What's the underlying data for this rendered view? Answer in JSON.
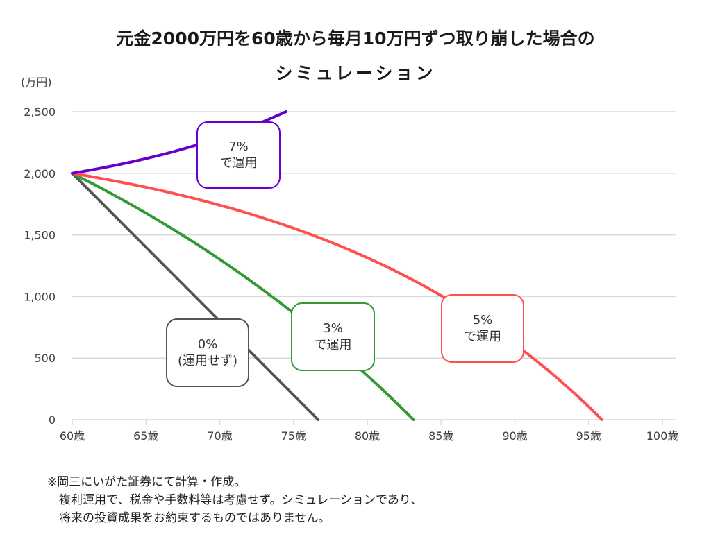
{
  "title_line1": "元金2000万円を60歳から毎月10万円ずつ取り崩した場合の",
  "title_line2": "シミュレーション",
  "chart_data": {
    "type": "line",
    "title": "元金2000万円を60歳から毎月10万円ずつ取り崩した場合のシミュレーション",
    "ylabel": "(万円)",
    "xlabel": "",
    "xlim": [
      60,
      100
    ],
    "ylim": [
      0,
      2500
    ],
    "grid": true,
    "x_ticks": [
      60,
      65,
      70,
      75,
      80,
      85,
      90,
      95,
      100
    ],
    "x_tick_labels": [
      "60歳",
      "65歳",
      "70歳",
      "75歳",
      "80歳",
      "85歳",
      "90歳",
      "95歳",
      "100歳"
    ],
    "y_ticks": [
      0,
      500,
      1000,
      1500,
      2000,
      2500
    ],
    "y_tick_labels": [
      "0",
      "500",
      "1,000",
      "1,500",
      "2,000",
      "2,500"
    ],
    "series": [
      {
        "name": "7%で運用",
        "color": "#6600cc",
        "x": [
          60,
          61,
          62,
          63,
          64,
          65,
          66,
          67,
          68,
          69,
          70,
          71,
          72,
          73,
          74,
          74.5
        ],
        "values": [
          2000,
          2020.6,
          2042.8,
          2066.5,
          2092.0,
          2119.3,
          2148.6,
          2180.0,
          2213.7,
          2249.8,
          2288.5,
          2330.0,
          2374.5,
          2422.2,
          2473.4,
          2500
        ]
      },
      {
        "name": "5%で運用",
        "color": "#ff5050",
        "x": [
          60,
          61,
          62,
          63,
          64,
          65,
          66,
          67,
          68,
          69,
          70,
          71,
          72,
          73,
          74,
          75,
          76,
          77,
          78,
          79,
          80,
          81,
          82,
          83,
          84,
          85,
          86,
          87,
          88,
          89,
          90,
          91,
          92,
          93,
          94,
          95,
          95.9
        ],
        "values": [
          2000,
          1979.5,
          1958.0,
          1935.4,
          1911.6,
          1886.7,
          1860.4,
          1832.8,
          1803.8,
          1773.3,
          1741.2,
          1707.5,
          1672.1,
          1634.8,
          1595.7,
          1554.5,
          1511.3,
          1465.8,
          1418.0,
          1367.8,
          1315.0,
          1259.4,
          1201.1,
          1139.7,
          1075.3,
          1007.5,
          936.2,
          861.4,
          782.6,
          699.9,
          612.9,
          521.5,
          425.4,
          324.3,
          218.1,
          106.5,
          0
        ]
      },
      {
        "name": "3%で運用",
        "color": "#339933",
        "x": [
          60,
          61,
          62,
          63,
          64,
          65,
          66,
          67,
          68,
          69,
          70,
          71,
          72,
          73,
          74,
          75,
          76,
          77,
          78,
          79,
          80,
          81,
          82,
          83,
          83.13
        ],
        "values": [
          2000,
          1939.2,
          1876.5,
          1811.9,
          1745.3,
          1676.8,
          1606.1,
          1533.3,
          1458.3,
          1381.0,
          1301.3,
          1219.2,
          1134.6,
          1047.5,
          957.7,
          865.1,
          769.8,
          671.5,
          570.3,
          466.0,
          358.5,
          247.7,
          133.6,
          16.0,
          0
        ]
      },
      {
        "name": "0%(運用せず)",
        "color": "#555555",
        "x": [
          60,
          65,
          70,
          75,
          76.67
        ],
        "values": [
          2000,
          1400,
          800,
          200,
          0
        ]
      }
    ],
    "annotations": [
      {
        "series": "7%で運用",
        "line1": "7%",
        "line2": "で運用",
        "color": "#6600cc"
      },
      {
        "series": "5%で運用",
        "line1": "5%",
        "line2": "で運用",
        "color": "#ff5050"
      },
      {
        "series": "3%で運用",
        "line1": "3%",
        "line2": "で運用",
        "color": "#339933"
      },
      {
        "series": "0%(運用せず)",
        "line1": "0%",
        "line2": "(運用せず)",
        "color": "#555555"
      }
    ]
  },
  "notes": [
    "※岡三にいがた証券にて計算・作成。",
    "　複利運用で、税金や手数料等は考慮せず。シミュレーションであり、",
    "　将来の投資成果をお約束するものではありません。"
  ]
}
